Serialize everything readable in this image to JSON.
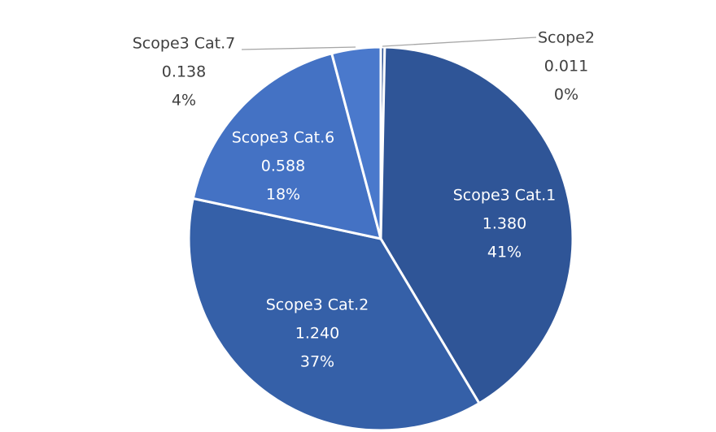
{
  "chart_data": {
    "type": "pie",
    "title": "",
    "slices": [
      {
        "name": "Scope2",
        "value": 0.011,
        "value_label": "0.011",
        "percent_label": "0%",
        "color": "#2f5597",
        "label_color": "#404040"
      },
      {
        "name": "Scope3 Cat.1",
        "value": 1.38,
        "value_label": "1.380",
        "percent_label": "41%",
        "color": "#2f5597",
        "label_color": "#ffffff"
      },
      {
        "name": "Scope3 Cat.2",
        "value": 1.24,
        "value_label": "1.240",
        "percent_label": "37%",
        "color": "#3560a8",
        "label_color": "#ffffff"
      },
      {
        "name": "Scope3 Cat.6",
        "value": 0.588,
        "value_label": "0.588",
        "percent_label": "18%",
        "color": "#4472c4",
        "label_color": "#ffffff"
      },
      {
        "name": "Scope3 Cat.7",
        "value": 0.138,
        "value_label": "0.138",
        "percent_label": "4%",
        "color": "#4a79cc",
        "label_color": "#404040"
      }
    ],
    "start_angle_deg": 0,
    "direction": "clockwise",
    "slice_border_color": "#ffffff",
    "leader_line_color": "#a6a6a6"
  }
}
